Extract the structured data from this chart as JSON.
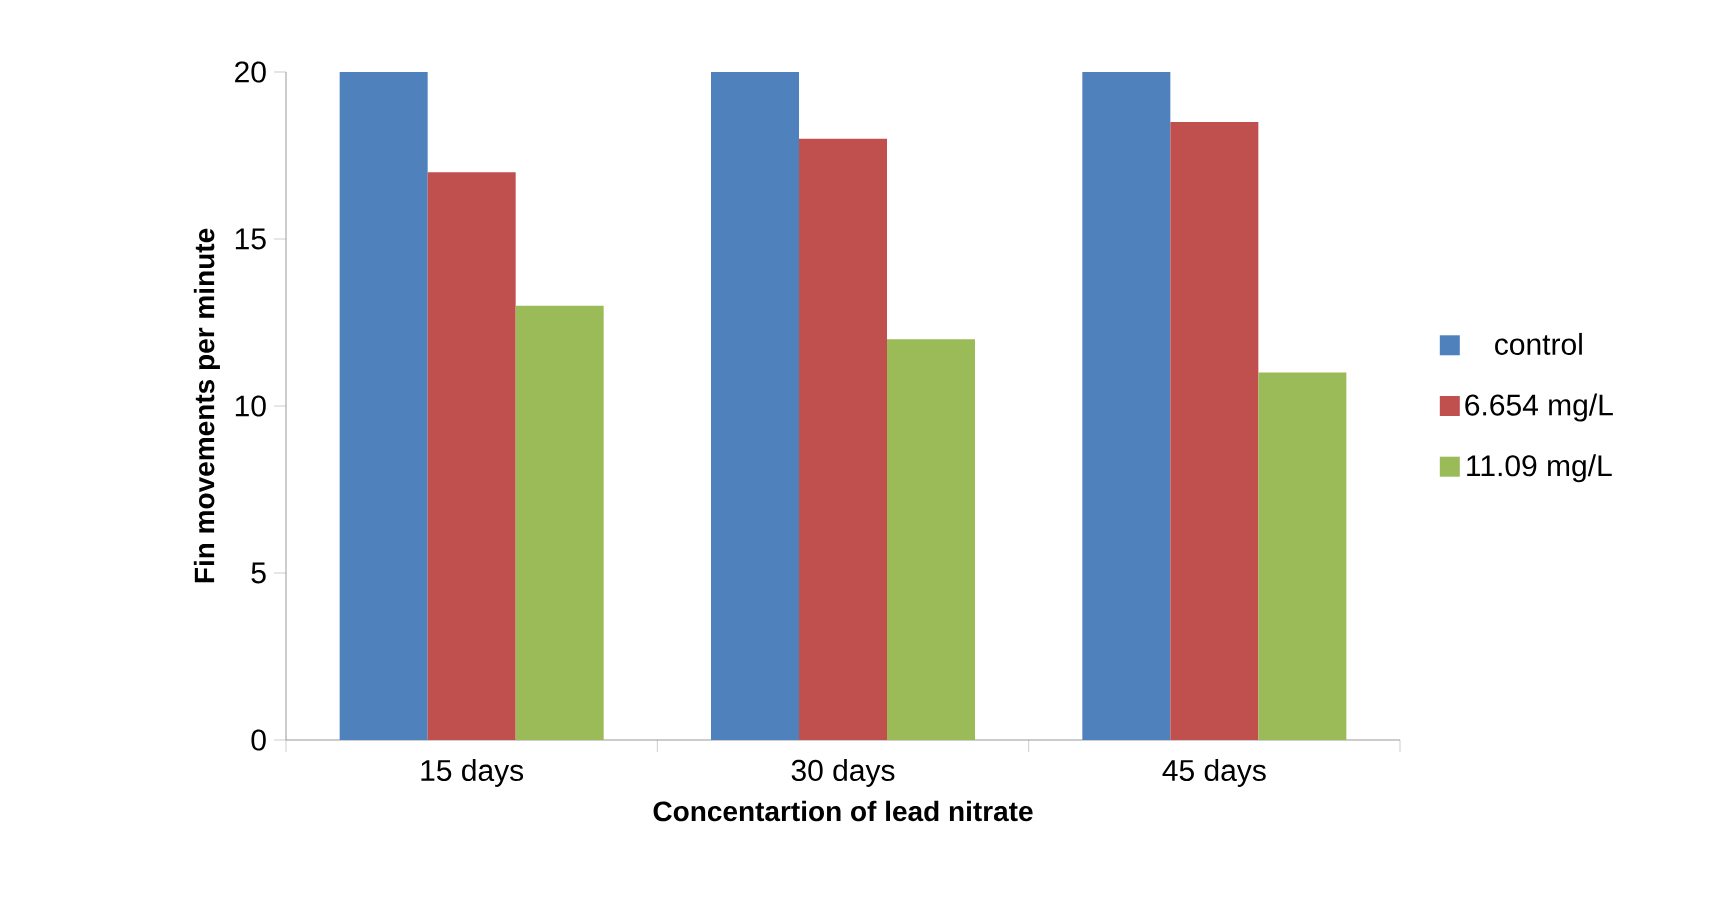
{
  "chart_data": {
    "type": "bar",
    "xlabel": "Concentartion of lead nitrate",
    "ylabel": "Fin movements per minute",
    "categories": [
      "15 days",
      "30 days",
      "45 days"
    ],
    "series": [
      {
        "name": "control",
        "color": "#4f81bd",
        "values": [
          20,
          20,
          20
        ]
      },
      {
        "name": "6.654 mg/L",
        "color": "#c0504d",
        "values": [
          17,
          18,
          18.5
        ]
      },
      {
        "name": "11.09 mg/L",
        "color": "#9bbb59",
        "values": [
          13,
          12,
          11
        ]
      }
    ],
    "ylim": [
      0,
      20
    ],
    "yticks": [
      0,
      5,
      10,
      15,
      20
    ],
    "grid": false,
    "legend": "right"
  }
}
